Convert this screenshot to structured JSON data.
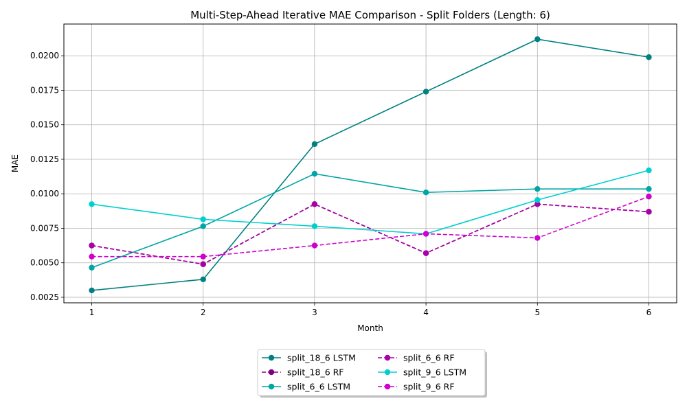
{
  "chart_data": {
    "type": "line",
    "title": "Multi-Step-Ahead Iterative MAE Comparison - Split Folders (Length: 6)",
    "xlabel": "Month",
    "ylabel": "MAE",
    "x": [
      1,
      2,
      3,
      4,
      5,
      6
    ],
    "xlim": [
      0.75,
      6.25
    ],
    "ylim": [
      0.0021,
      0.0223
    ],
    "xticks": [
      "1",
      "2",
      "3",
      "4",
      "5",
      "6"
    ],
    "yticks": [
      {
        "value": 0.0025,
        "label": "0.0025"
      },
      {
        "value": 0.005,
        "label": "0.0050"
      },
      {
        "value": 0.0075,
        "label": "0.0075"
      },
      {
        "value": 0.01,
        "label": "0.0100"
      },
      {
        "value": 0.0125,
        "label": "0.0125"
      },
      {
        "value": 0.015,
        "label": "0.0150"
      },
      {
        "value": 0.0175,
        "label": "0.0175"
      },
      {
        "value": 0.02,
        "label": "0.0200"
      }
    ],
    "grid": true,
    "legend_position": "below-center",
    "series": [
      {
        "name": "split_18_6 LSTM",
        "color": "#008080",
        "dashed": false,
        "values": [
          0.003,
          0.0038,
          0.0136,
          0.0174,
          0.0212,
          0.0199
        ]
      },
      {
        "name": "split_18_6 RF",
        "color": "#800080",
        "dashed": true,
        "values": [
          0.00625,
          0.0049,
          0.00925,
          0.0057,
          0.00925,
          0.0087
        ]
      },
      {
        "name": "split_6_6 LSTM",
        "color": "#00a5a5",
        "dashed": false,
        "values": [
          0.00465,
          0.00765,
          0.01145,
          0.0101,
          0.01035,
          0.01035
        ]
      },
      {
        "name": "split_6_6 RF",
        "color": "#a600a6",
        "dashed": true,
        "values": [
          0.00625,
          0.0049,
          0.00925,
          0.0057,
          0.00925,
          0.0087
        ]
      },
      {
        "name": "split_9_6 LSTM",
        "color": "#00cfd0",
        "dashed": false,
        "values": [
          0.00925,
          0.00815,
          0.00765,
          0.0071,
          0.00955,
          0.0117
        ]
      },
      {
        "name": "split_9_6 RF",
        "color": "#cf00cf",
        "dashed": true,
        "values": [
          0.00545,
          0.00545,
          0.00625,
          0.0071,
          0.0068,
          0.0098
        ]
      }
    ]
  }
}
